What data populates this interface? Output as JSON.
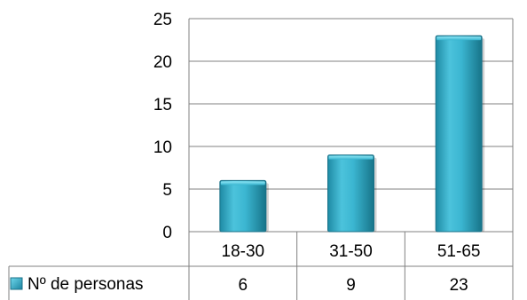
{
  "chart_data": {
    "type": "bar",
    "categories": [
      "18-30",
      "31-50",
      "51-65"
    ],
    "series": [
      {
        "name": "Nº de personas",
        "values": [
          6,
          9,
          23
        ]
      }
    ],
    "ylim": [
      0,
      25
    ],
    "yticks": [
      0,
      5,
      10,
      15,
      20,
      25
    ],
    "grid": true,
    "legend": "data-table-left",
    "data_table": true,
    "colors": {
      "bar_light": "#5fd0e6",
      "bar_mid": "#2fb3cf",
      "bar_dark": "#1a7f98",
      "grid": "#808080"
    }
  }
}
